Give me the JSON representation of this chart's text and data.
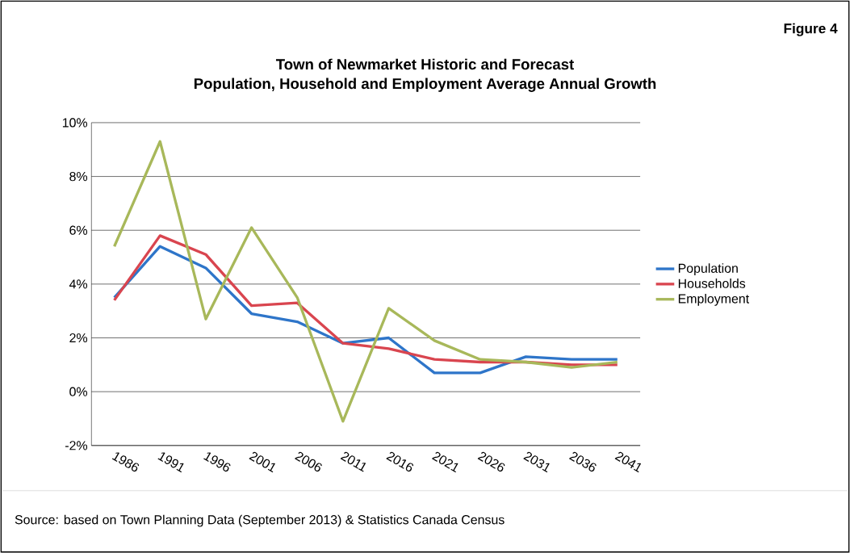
{
  "chart_data": {
    "type": "line",
    "title": "Town of Newmarket Historic and Forecast\nPopulation, Household and Employment Average Annual Growth",
    "categories": [
      "1986",
      "1991",
      "1996",
      "2001",
      "2006",
      "2011",
      "2016",
      "2021",
      "2026",
      "2031",
      "2036",
      "2041"
    ],
    "series": [
      {
        "name": "Population",
        "color": "#2e75c9",
        "values": [
          3.5,
          5.4,
          4.6,
          2.9,
          2.6,
          1.8,
          2.0,
          0.7,
          0.7,
          1.3,
          1.2,
          1.2
        ]
      },
      {
        "name": "Households",
        "color": "#d9454f",
        "values": [
          3.4,
          5.8,
          5.1,
          3.2,
          3.3,
          1.8,
          1.6,
          1.2,
          1.1,
          1.1,
          1.0,
          1.0
        ]
      },
      {
        "name": "Employment",
        "color": "#a8b85a",
        "values": [
          5.4,
          9.3,
          2.7,
          6.1,
          3.5,
          -1.1,
          3.1,
          1.9,
          1.2,
          1.1,
          0.9,
          1.1
        ]
      }
    ],
    "ylim": [
      -2,
      10
    ],
    "yticks": [
      {
        "value": -2,
        "label": "-2%"
      },
      {
        "value": 0,
        "label": "0%"
      },
      {
        "value": 2,
        "label": "2%"
      },
      {
        "value": 4,
        "label": "4%"
      },
      {
        "value": 6,
        "label": "6%"
      },
      {
        "value": 8,
        "label": "8%"
      },
      {
        "value": 10,
        "label": "10%"
      }
    ],
    "grid": "y",
    "legend": "right",
    "annotations": [
      "Figure 4",
      "Source: based on Town Planning Data (September 2013) & Statistics Canada Census"
    ]
  }
}
